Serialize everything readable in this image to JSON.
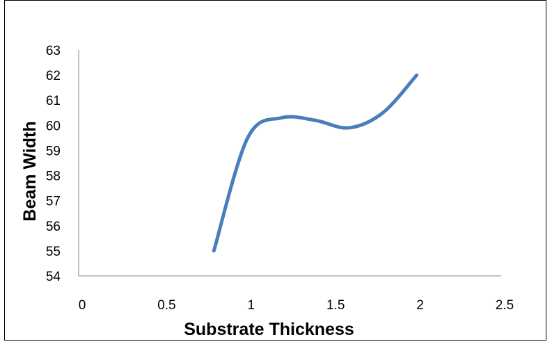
{
  "chart_data": {
    "type": "line",
    "title": "",
    "xlabel": "Substrate Thickness",
    "ylabel": "Beam Width",
    "xlim": [
      0,
      2.5
    ],
    "ylim": [
      54,
      63
    ],
    "x_ticks": [
      "0",
      "0.5",
      "1",
      "1.5",
      "2",
      "2.5"
    ],
    "y_ticks": [
      "54",
      "55",
      "56",
      "57",
      "58",
      "59",
      "60",
      "61",
      "62",
      "63"
    ],
    "grid": false,
    "legend": "none",
    "smoothed": true,
    "line_color": "#4a7ebb",
    "series": [
      {
        "x": [
          0.8,
          1.0,
          1.2,
          1.4,
          1.6,
          1.8,
          2.0
        ],
        "values": [
          55,
          59.5,
          60.3,
          60.2,
          59.9,
          60.5,
          62
        ]
      }
    ]
  }
}
